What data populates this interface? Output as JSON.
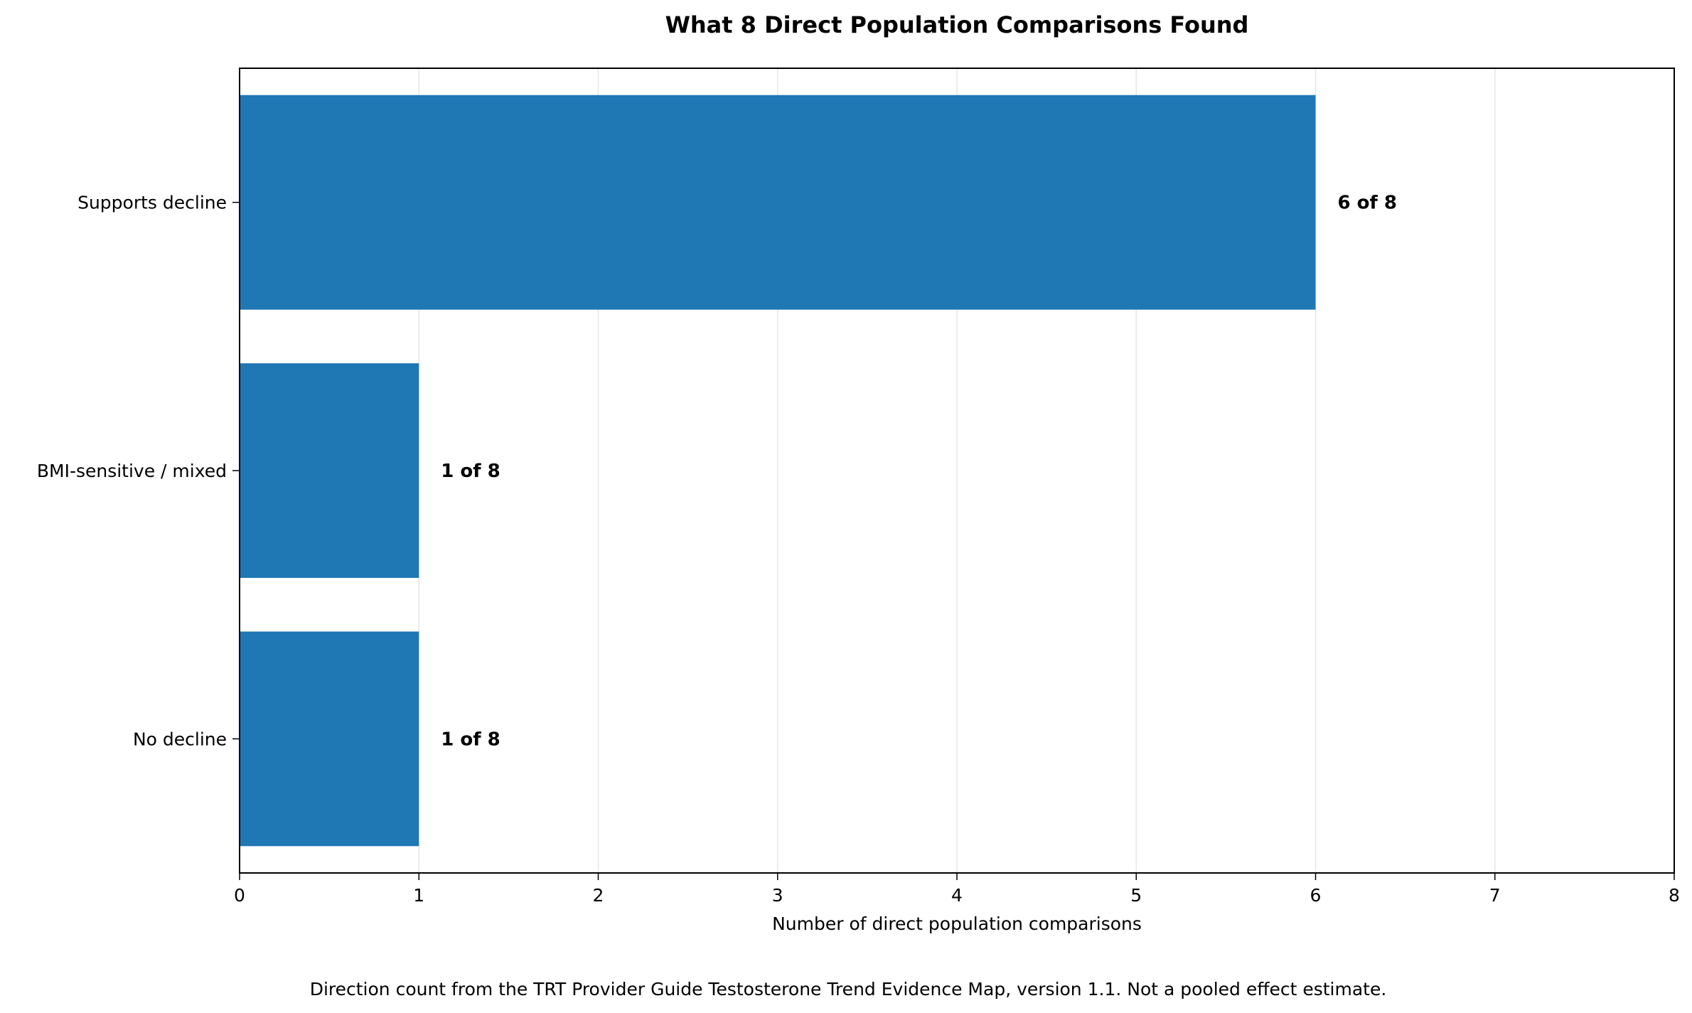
{
  "chart_data": {
    "type": "bar",
    "orientation": "horizontal",
    "title": "What 8 Direct Population Comparisons Found",
    "xlabel": "Number of direct population comparisons",
    "ylabel": "",
    "categories": [
      "Supports decline",
      "BMI-sensitive / mixed",
      "No decline"
    ],
    "values": [
      6,
      1,
      1
    ],
    "data_labels": [
      "6 of 8",
      "1 of 8",
      "1 of 8"
    ],
    "xlim": [
      0,
      8
    ],
    "xticks": [
      "0",
      "1",
      "2",
      "3",
      "4",
      "5",
      "6",
      "7",
      "8"
    ],
    "grid": "vertical",
    "bar_color": "#1f77b4",
    "footnote": "Direction count from the TRT Provider Guide Testosterone Trend Evidence Map, version 1.1. Not a pooled effect estimate."
  }
}
